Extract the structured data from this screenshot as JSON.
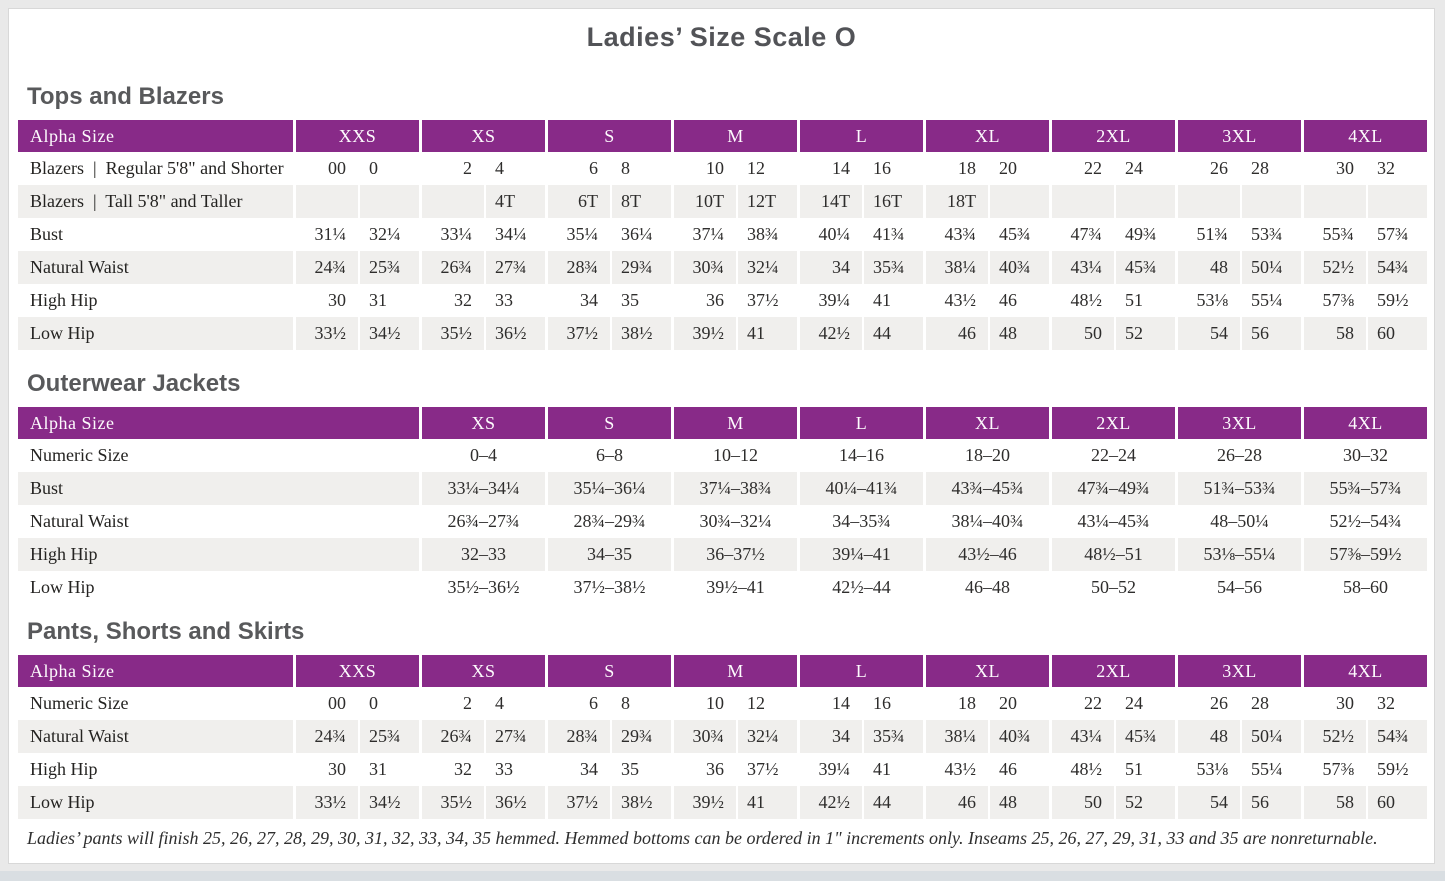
{
  "page_title": "Ladies’ Size Scale O",
  "footnote": "Ladies’ pants will finish 25, 26, 27, 28, 29, 30, 31, 32, 33, 34, 35 hemmed. Hemmed bottoms can be ordered in 1\" increments only. Inseams 25, 26, 27, 29, 31, 33 and 35 are nonreturnable.",
  "colors": {
    "header_purple": "#882a88",
    "alt_row_gray": "#f0efed",
    "heading_gray": "#58595b",
    "page_background": "#ffffff",
    "outer_background": "#e9e9e9",
    "bottom_strip": "#d9dee2"
  },
  "tables": [
    {
      "section_title": "Tops and Blazers",
      "type": "paired",
      "header_label": "Alpha Size",
      "columns": [
        "XXS",
        "XS",
        "S",
        "M",
        "L",
        "XL",
        "2XL",
        "3XL",
        "4XL"
      ],
      "rows": [
        {
          "label": "Blazers  |  Regular 5'8\" and Shorter",
          "pairs": [
            [
              "00",
              "0"
            ],
            [
              "2",
              "4"
            ],
            [
              "6",
              "8"
            ],
            [
              "10",
              "12"
            ],
            [
              "14",
              "16"
            ],
            [
              "18",
              "20"
            ],
            [
              "22",
              "24"
            ],
            [
              "26",
              "28"
            ],
            [
              "30",
              "32"
            ]
          ]
        },
        {
          "label": "Blazers  |  Tall 5'8\" and Taller",
          "pairs": [
            [
              "",
              ""
            ],
            [
              "",
              "4T"
            ],
            [
              "6T",
              "8T"
            ],
            [
              "10T",
              "12T"
            ],
            [
              "14T",
              "16T"
            ],
            [
              "18T",
              ""
            ],
            [
              "",
              ""
            ],
            [
              "",
              ""
            ],
            [
              "",
              ""
            ]
          ]
        },
        {
          "label": "Bust",
          "pairs": [
            [
              "31¼",
              "32¼"
            ],
            [
              "33¼",
              "34¼"
            ],
            [
              "35¼",
              "36¼"
            ],
            [
              "37¼",
              "38¾"
            ],
            [
              "40¼",
              "41¾"
            ],
            [
              "43¾",
              "45¾"
            ],
            [
              "47¾",
              "49¾"
            ],
            [
              "51¾",
              "53¾"
            ],
            [
              "55¾",
              "57¾"
            ]
          ]
        },
        {
          "label": "Natural Waist",
          "pairs": [
            [
              "24¾",
              "25¾"
            ],
            [
              "26¾",
              "27¾"
            ],
            [
              "28¾",
              "29¾"
            ],
            [
              "30¾",
              "32¼"
            ],
            [
              "34",
              "35¾"
            ],
            [
              "38¼",
              "40¾"
            ],
            [
              "43¼",
              "45¾"
            ],
            [
              "48",
              "50¼"
            ],
            [
              "52½",
              "54¾"
            ]
          ]
        },
        {
          "label": "High Hip",
          "pairs": [
            [
              "30",
              "31"
            ],
            [
              "32",
              "33"
            ],
            [
              "34",
              "35"
            ],
            [
              "36",
              "37½"
            ],
            [
              "39¼",
              "41"
            ],
            [
              "43½",
              "46"
            ],
            [
              "48½",
              "51"
            ],
            [
              "53⅛",
              "55¼"
            ],
            [
              "57⅜",
              "59½"
            ]
          ]
        },
        {
          "label": "Low Hip",
          "pairs": [
            [
              "33½",
              "34½"
            ],
            [
              "35½",
              "36½"
            ],
            [
              "37½",
              "38½"
            ],
            [
              "39½",
              "41"
            ],
            [
              "42½",
              "44"
            ],
            [
              "46",
              "48"
            ],
            [
              "50",
              "52"
            ],
            [
              "54",
              "56"
            ],
            [
              "58",
              "60"
            ]
          ]
        }
      ]
    },
    {
      "section_title": "Outerwear Jackets",
      "type": "single",
      "header_label": "Alpha Size",
      "columns": [
        "XS",
        "S",
        "M",
        "L",
        "XL",
        "2XL",
        "3XL",
        "4XL"
      ],
      "rows": [
        {
          "label": "Numeric Size",
          "values": [
            "0–4",
            "6–8",
            "10–12",
            "14–16",
            "18–20",
            "22–24",
            "26–28",
            "30–32"
          ]
        },
        {
          "label": "Bust",
          "values": [
            "33¼–34¼",
            "35¼–36¼",
            "37¼–38¾",
            "40¼–41¾",
            "43¾–45¾",
            "47¾–49¾",
            "51¾–53¾",
            "55¾–57¾"
          ]
        },
        {
          "label": "Natural Waist",
          "values": [
            "26¾–27¾",
            "28¾–29¾",
            "30¾–32¼",
            "34–35¾",
            "38¼–40¾",
            "43¼–45¾",
            "48–50¼",
            "52½–54¾"
          ]
        },
        {
          "label": "High Hip",
          "values": [
            "32–33",
            "34–35",
            "36–37½",
            "39¼–41",
            "43½–46",
            "48½–51",
            "53⅛–55¼",
            "57⅜–59½"
          ]
        },
        {
          "label": "Low Hip",
          "values": [
            "35½–36½",
            "37½–38½",
            "39½–41",
            "42½–44",
            "46–48",
            "50–52",
            "54–56",
            "58–60"
          ]
        }
      ]
    },
    {
      "section_title": "Pants, Shorts and Skirts",
      "type": "paired",
      "header_label": "Alpha Size",
      "columns": [
        "XXS",
        "XS",
        "S",
        "M",
        "L",
        "XL",
        "2XL",
        "3XL",
        "4XL"
      ],
      "rows": [
        {
          "label": "Numeric Size",
          "pairs": [
            [
              "00",
              "0"
            ],
            [
              "2",
              "4"
            ],
            [
              "6",
              "8"
            ],
            [
              "10",
              "12"
            ],
            [
              "14",
              "16"
            ],
            [
              "18",
              "20"
            ],
            [
              "22",
              "24"
            ],
            [
              "26",
              "28"
            ],
            [
              "30",
              "32"
            ]
          ]
        },
        {
          "label": "Natural Waist",
          "pairs": [
            [
              "24¾",
              "25¾"
            ],
            [
              "26¾",
              "27¾"
            ],
            [
              "28¾",
              "29¾"
            ],
            [
              "30¾",
              "32¼"
            ],
            [
              "34",
              "35¾"
            ],
            [
              "38¼",
              "40¾"
            ],
            [
              "43¼",
              "45¾"
            ],
            [
              "48",
              "50¼"
            ],
            [
              "52½",
              "54¾"
            ]
          ]
        },
        {
          "label": "High Hip",
          "pairs": [
            [
              "30",
              "31"
            ],
            [
              "32",
              "33"
            ],
            [
              "34",
              "35"
            ],
            [
              "36",
              "37½"
            ],
            [
              "39¼",
              "41"
            ],
            [
              "43½",
              "46"
            ],
            [
              "48½",
              "51"
            ],
            [
              "53⅛",
              "55¼"
            ],
            [
              "57⅜",
              "59½"
            ]
          ]
        },
        {
          "label": "Low Hip",
          "pairs": [
            [
              "33½",
              "34½"
            ],
            [
              "35½",
              "36½"
            ],
            [
              "37½",
              "38½"
            ],
            [
              "39½",
              "41"
            ],
            [
              "42½",
              "44"
            ],
            [
              "46",
              "48"
            ],
            [
              "50",
              "52"
            ],
            [
              "54",
              "56"
            ],
            [
              "58",
              "60"
            ]
          ]
        }
      ]
    }
  ]
}
